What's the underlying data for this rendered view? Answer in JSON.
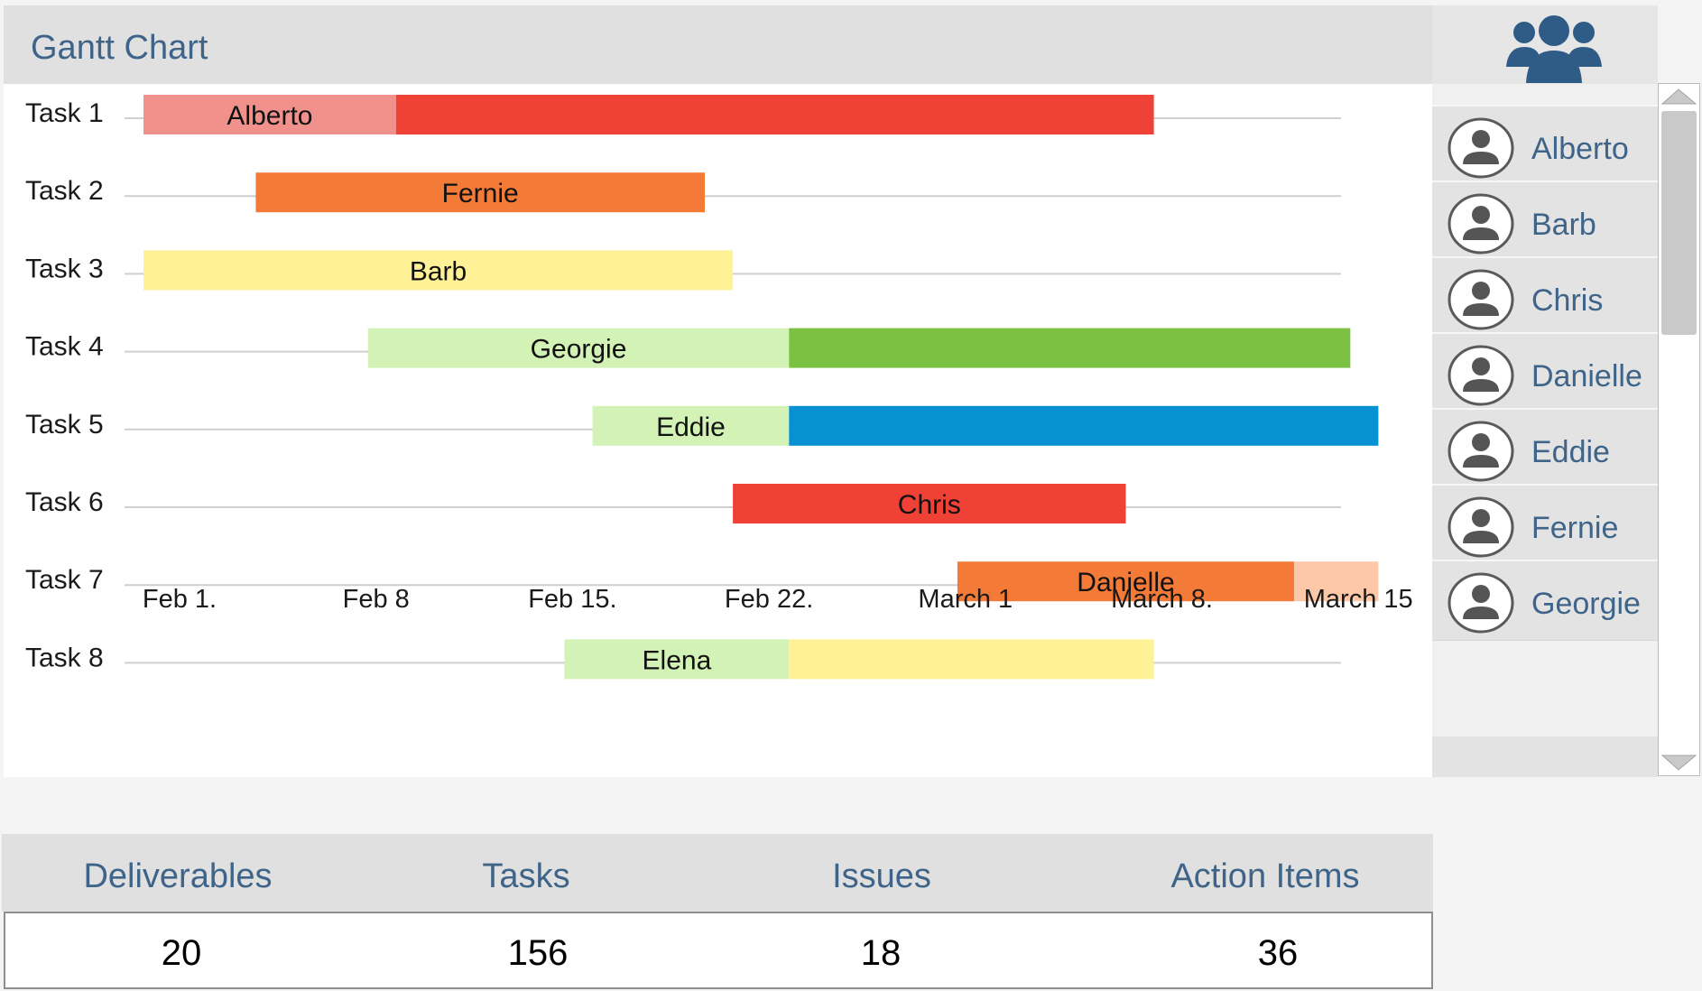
{
  "gantt": {
    "title": "Gantt Chart"
  },
  "chart_data": {
    "type": "gantt",
    "title": "Gantt Chart",
    "x_ticks": [
      "Feb 1.",
      "Feb 8",
      "Feb 15.",
      "Feb 22.",
      "March 1",
      "March 8.",
      "March 15"
    ],
    "tasks": [
      {
        "task": "Task 1",
        "owner": "Alberto",
        "segments": [
          {
            "start": "Feb 1",
            "end": "Feb 10",
            "color": "#f0928b"
          },
          {
            "start": "Feb 10",
            "end": "Mar 9",
            "color": "#ef4136"
          }
        ]
      },
      {
        "task": "Task 2",
        "owner": "Fernie",
        "segments": [
          {
            "start": "Feb 5",
            "end": "Feb 21",
            "color": "#f47b37"
          }
        ]
      },
      {
        "task": "Task 3",
        "owner": "Barb",
        "segments": [
          {
            "start": "Feb 1",
            "end": "Feb 22",
            "color": "#fff296"
          }
        ]
      },
      {
        "task": "Task 4",
        "owner": "Georgie",
        "segments": [
          {
            "start": "Feb 9",
            "end": "Feb 24",
            "color": "#d3f2b6"
          },
          {
            "start": "Feb 24",
            "end": "Mar 16",
            "color": "#7cc242"
          }
        ]
      },
      {
        "task": "Task 5",
        "owner": "Eddie",
        "segments": [
          {
            "start": "Feb 17",
            "end": "Feb 24",
            "color": "#d3f2b6"
          },
          {
            "start": "Feb 24",
            "end": "Mar 17",
            "color": "#0791d3"
          }
        ]
      },
      {
        "task": "Task 6",
        "owner": "Chris",
        "segments": [
          {
            "start": "Feb 22",
            "end": "Mar 8",
            "color": "#ef4136"
          }
        ]
      },
      {
        "task": "Task 7",
        "owner": "Danielle",
        "segments": [
          {
            "start": "Mar 2",
            "end": "Mar 14",
            "color": "#f47b37"
          },
          {
            "start": "Mar 14",
            "end": "Mar 17",
            "color": "#fcc8a8"
          }
        ]
      },
      {
        "task": "Task 8",
        "owner": "Elena",
        "segments": [
          {
            "start": "Feb 16",
            "end": "Feb 24",
            "color": "#d3f2b6"
          },
          {
            "start": "Feb 24",
            "end": "Mar 9",
            "color": "#fff296"
          }
        ]
      }
    ]
  },
  "sidebar": {
    "team_icon": "team-icon",
    "avatar_icon": "user-avatar-icon",
    "members": [
      "Alberto",
      "Barb",
      "Chris",
      "Danielle",
      "Eddie",
      "Fernie",
      "Georgie"
    ]
  },
  "stats": {
    "items": [
      {
        "label": "Deliverables",
        "value": "20"
      },
      {
        "label": "Tasks",
        "value": "156"
      },
      {
        "label": "Issues",
        "value": "18"
      },
      {
        "label": "Action Items",
        "value": "36"
      }
    ]
  },
  "colors": {
    "accent_text": "#3e6489",
    "team_icon": "#2f5c86",
    "header_bg": "#e0e0e0"
  }
}
